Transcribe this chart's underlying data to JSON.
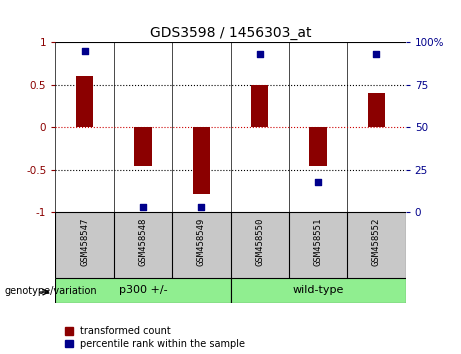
{
  "title": "GDS3598 / 1456303_at",
  "samples": [
    "GSM458547",
    "GSM458548",
    "GSM458549",
    "GSM458550",
    "GSM458551",
    "GSM458552"
  ],
  "transformed_counts": [
    0.6,
    -0.45,
    -0.78,
    0.5,
    -0.45,
    0.4
  ],
  "percentile_ranks_display": [
    95,
    3,
    3,
    93,
    18,
    93
  ],
  "bar_color": "#8B0000",
  "dot_color": "#00008B",
  "y_ticks_left": [
    -1,
    -0.5,
    0,
    0.5,
    1
  ],
  "y_ticks_right": [
    0,
    25,
    50,
    75,
    100
  ],
  "zero_line_color": "#CC0000",
  "group_label_color": "#90EE90",
  "background_color": "#ffffff",
  "label_bg_color": "#C8C8C8",
  "legend_red_label": "transformed count",
  "legend_blue_label": "percentile rank within the sample",
  "genotype_label": "genotype/variation",
  "p300_label": "p300 +/-",
  "wildtype_label": "wild-type"
}
